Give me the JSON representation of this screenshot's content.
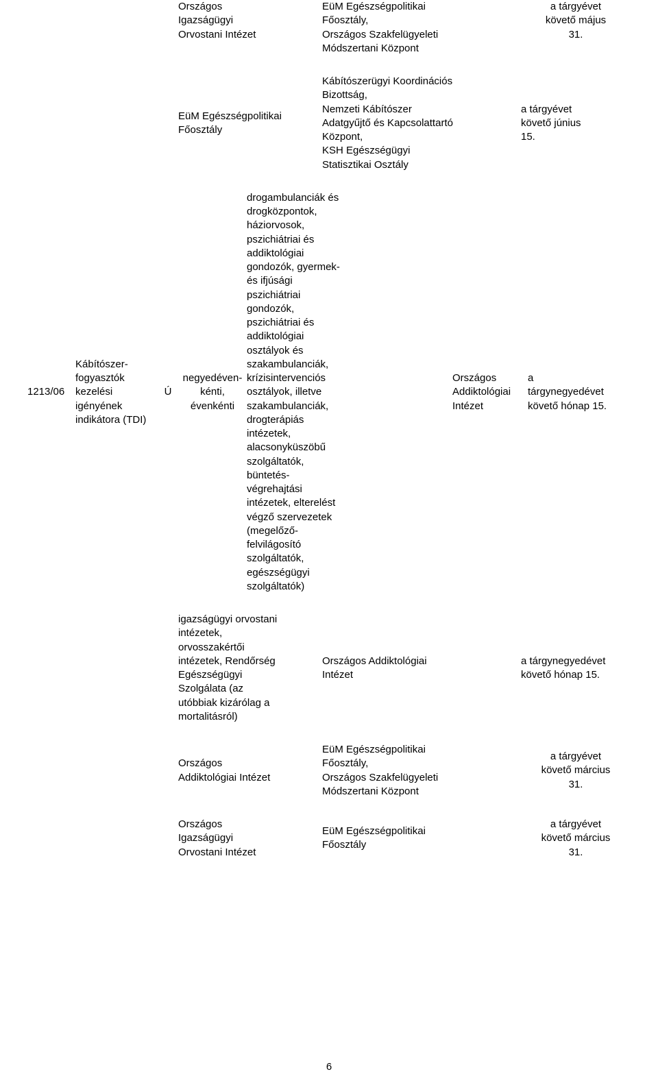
{
  "typography": {
    "font_family": "Arial",
    "base_font_size_pt": 11,
    "line_height": 1.35,
    "text_color": "#000000",
    "background_color": "#ffffff"
  },
  "row1": {
    "col_a": "Országos\nIgazságügyi\nOrvostani Intézet",
    "col_b": "EüM Egészségpolitikai\nFőosztály,\nOrszágos Szakfelügyeleti\nMódszertani Központ",
    "col_c": "a tárgyévet\nkövető május\n31."
  },
  "row2": {
    "col_a": "EüM Egészségpolitikai\nFőosztály",
    "col_b": "Kábítószerügyi Koordinációs\nBizottság,\nNemzeti Kábítószer\nAdatgyűjtő és Kapcsolattartó\nKözpont,\nKSH Egészségügyi\nStatisztikai Osztály",
    "col_c": "a tárgyévet\nkövető június\n15."
  },
  "main": {
    "code": "1213/06",
    "title": "Kábítószer-\nfogyasztók\nkezelési\nigényének\nindikátora (TDI)",
    "marker": "Ú",
    "frequency": "negyedéven-\nkénti,\névenkénti",
    "description": "drogambulanciák és\ndrogközpontok,\nháziorvosok,\npszichiátriai és\naddiktológiai\ngondozók, gyermek-\nés ifjúsági\npszichiátriai\ngondozók,\npszichiátriai és\naddiktológiai\nosztályok és\nszakambulanciák,\nkrízisintervenciós\nosztályok, illetve\nszakambulanciák,\ndrogterápiás\nintézetek,\nalacsonyküszöbű\nszolgáltatók,\nbüntetés-\nvégrehajtási\nintézetek, elterelést\nvégző szervezetek\n(megelőző-\nfelvilágosító\nszolgáltatók,\negészségügyi\nszolgáltatók)",
    "recipient": "Országos\nAddiktológiai\nIntézet",
    "deadline": "a\ntárgynegyedévet\nkövető hónap 15."
  },
  "row4": {
    "col_a": "igazságügyi orvostani\nintézetek,\norvosszakértői\nintézetek, Rendőrség\nEgészségügyi\nSzolgálata (az\nutóbbiak kizárólag a\nmortalitásról)",
    "col_b": "Országos Addiktológiai\nIntézet",
    "col_c": "a tárgynegyedévet\nkövető hónap 15."
  },
  "row5": {
    "col_a": "Országos\nAddiktológiai Intézet",
    "col_b": "EüM Egészségpolitikai\nFőosztály,\nOrszágos Szakfelügyeleti\nMódszertani Központ",
    "col_c": "a tárgyévet\nkövető március\n31."
  },
  "row6": {
    "col_a": "Országos\nIgazságügyi\nOrvostani Intézet",
    "col_b": "EüM Egészségpolitikai\nFőosztály",
    "col_c": "a tárgyévet\nkövető március\n31."
  },
  "page_number": "6"
}
